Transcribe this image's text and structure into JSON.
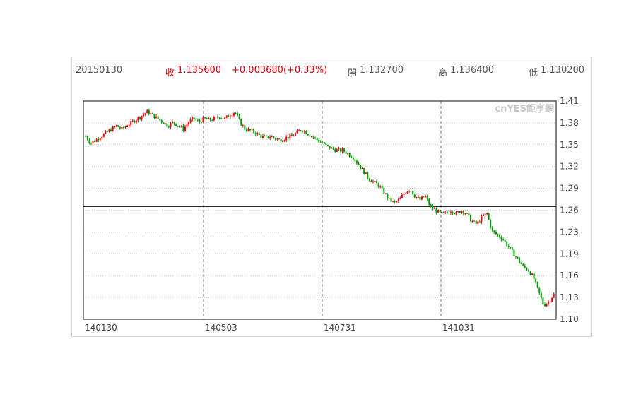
{
  "header": {
    "date": "20150130",
    "close_label": "收",
    "close_value": "1.135600",
    "change": "+0.003680(+0.33%)",
    "open_label": "開",
    "open_value": "1.132700",
    "high_label": "高",
    "high_value": "1.136400",
    "low_label": "低",
    "low_value": "1.130200"
  },
  "watermark": "cnYES鉅亨網",
  "colors": {
    "up": "#e8000b",
    "down": "#009900",
    "text_red": "#e8000b",
    "text_gray": "#555555"
  },
  "chart_data": {
    "type": "candlestick",
    "title": "",
    "xlabel": "",
    "ylabel": "",
    "ylim": [
      1.1,
      1.41
    ],
    "y_ticks": [
      "1.41",
      "1.38",
      "1.35",
      "1.32",
      "1.29",
      "1.26",
      "1.23",
      "1.19",
      "1.16",
      "1.13",
      "1.10"
    ],
    "x_tick_labels": [
      "140130",
      "140503",
      "140731",
      "141031"
    ],
    "reference_line": 1.26,
    "grid": true,
    "series": [
      {
        "values": [
          1.36,
          1.35,
          1.355,
          1.36,
          1.365,
          1.37,
          1.375,
          1.37,
          1.375,
          1.38,
          1.385,
          1.39,
          1.395,
          1.39,
          1.385,
          1.38,
          1.375,
          1.38,
          1.375,
          1.37,
          1.38,
          1.385,
          1.38,
          1.385,
          1.383,
          1.385,
          1.388,
          1.385,
          1.39,
          1.395,
          1.38,
          1.37,
          1.368,
          1.365,
          1.36,
          1.358,
          1.36,
          1.356,
          1.355,
          1.358,
          1.36,
          1.365,
          1.37,
          1.365,
          1.36,
          1.355,
          1.35,
          1.345,
          1.342,
          1.34,
          1.34,
          1.335,
          1.33,
          1.32,
          1.31,
          1.3,
          1.295,
          1.29,
          1.28,
          1.27,
          1.265,
          1.27,
          1.28,
          1.285,
          1.275,
          1.27,
          1.275,
          1.26,
          1.255,
          1.25,
          1.25,
          1.255,
          1.25,
          1.255,
          1.25,
          1.24,
          1.235,
          1.245,
          1.25,
          1.225,
          1.22,
          1.215,
          1.205,
          1.195,
          1.185,
          1.175,
          1.17,
          1.16,
          1.14,
          1.12,
          1.125,
          1.1356
        ]
      }
    ]
  }
}
